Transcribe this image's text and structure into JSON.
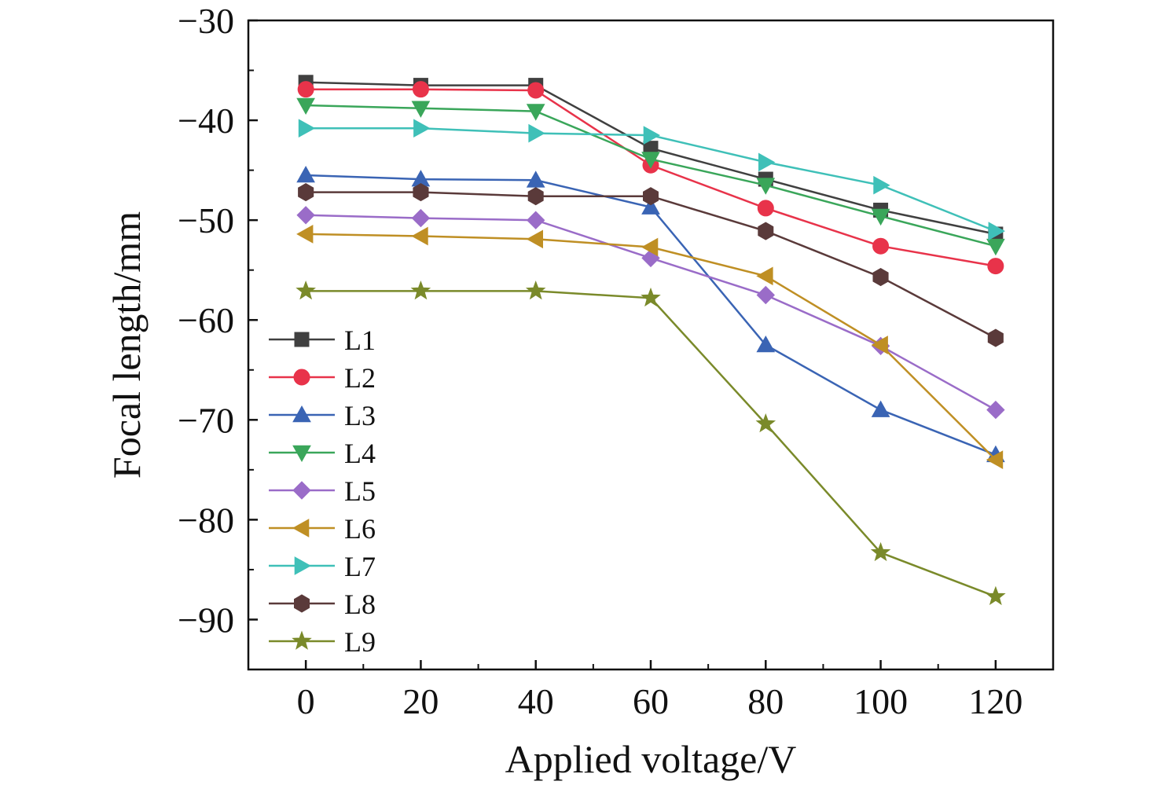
{
  "chart_data": {
    "type": "line",
    "xlabel": "Applied voltage/V",
    "ylabel": "Focal length/mm",
    "x": [
      0,
      20,
      40,
      60,
      80,
      100,
      120
    ],
    "xlim": [
      -10,
      130
    ],
    "ylim": [
      -95,
      -30
    ],
    "xticks": [
      0,
      20,
      40,
      60,
      80,
      100,
      120
    ],
    "yticks": [
      -30,
      -40,
      -50,
      -60,
      -70,
      -80,
      -90
    ],
    "xtick_labels": [
      "0",
      "20",
      "40",
      "60",
      "80",
      "100",
      "120"
    ],
    "ytick_labels": [
      "−30",
      "−40",
      "−50",
      "−60",
      "−70",
      "−80",
      "−90"
    ],
    "legend_position": "left",
    "grid": false,
    "series": [
      {
        "name": "L1",
        "color": "#404040",
        "marker": "square",
        "values": [
          -36.2,
          -36.5,
          -36.5,
          -42.8,
          -45.9,
          -49.0,
          -51.4
        ]
      },
      {
        "name": "L2",
        "color": "#e8334a",
        "marker": "circle",
        "values": [
          -36.9,
          -36.9,
          -37.0,
          -44.5,
          -48.8,
          -52.6,
          -54.6
        ]
      },
      {
        "name": "L3",
        "color": "#3a64b4",
        "marker": "triangle-up",
        "values": [
          -45.5,
          -45.9,
          -46.0,
          -48.7,
          -62.5,
          -69.0,
          -73.5
        ]
      },
      {
        "name": "L4",
        "color": "#3aa65a",
        "marker": "triangle-down",
        "values": [
          -38.5,
          -38.8,
          -39.1,
          -43.9,
          -46.5,
          -49.6,
          -52.6
        ]
      },
      {
        "name": "L5",
        "color": "#9a6cc8",
        "marker": "diamond",
        "values": [
          -49.5,
          -49.8,
          -50.0,
          -53.8,
          -57.5,
          -62.6,
          -69.0
        ]
      },
      {
        "name": "L6",
        "color": "#bf8f24",
        "marker": "triangle-left",
        "values": [
          -51.4,
          -51.6,
          -51.9,
          -52.7,
          -55.6,
          -62.5,
          -74.0
        ]
      },
      {
        "name": "L7",
        "color": "#3fc0b8",
        "marker": "triangle-right",
        "values": [
          -40.8,
          -40.8,
          -41.3,
          -41.5,
          -44.2,
          -46.5,
          -51.1
        ]
      },
      {
        "name": "L8",
        "color": "#5a3a3a",
        "marker": "hexagon",
        "values": [
          -47.2,
          -47.2,
          -47.6,
          -47.6,
          -51.1,
          -55.7,
          -61.8
        ]
      },
      {
        "name": "L9",
        "color": "#7a8a2a",
        "marker": "star",
        "values": [
          -57.1,
          -57.1,
          -57.1,
          -57.8,
          -70.4,
          -83.3,
          -87.7
        ]
      }
    ]
  }
}
